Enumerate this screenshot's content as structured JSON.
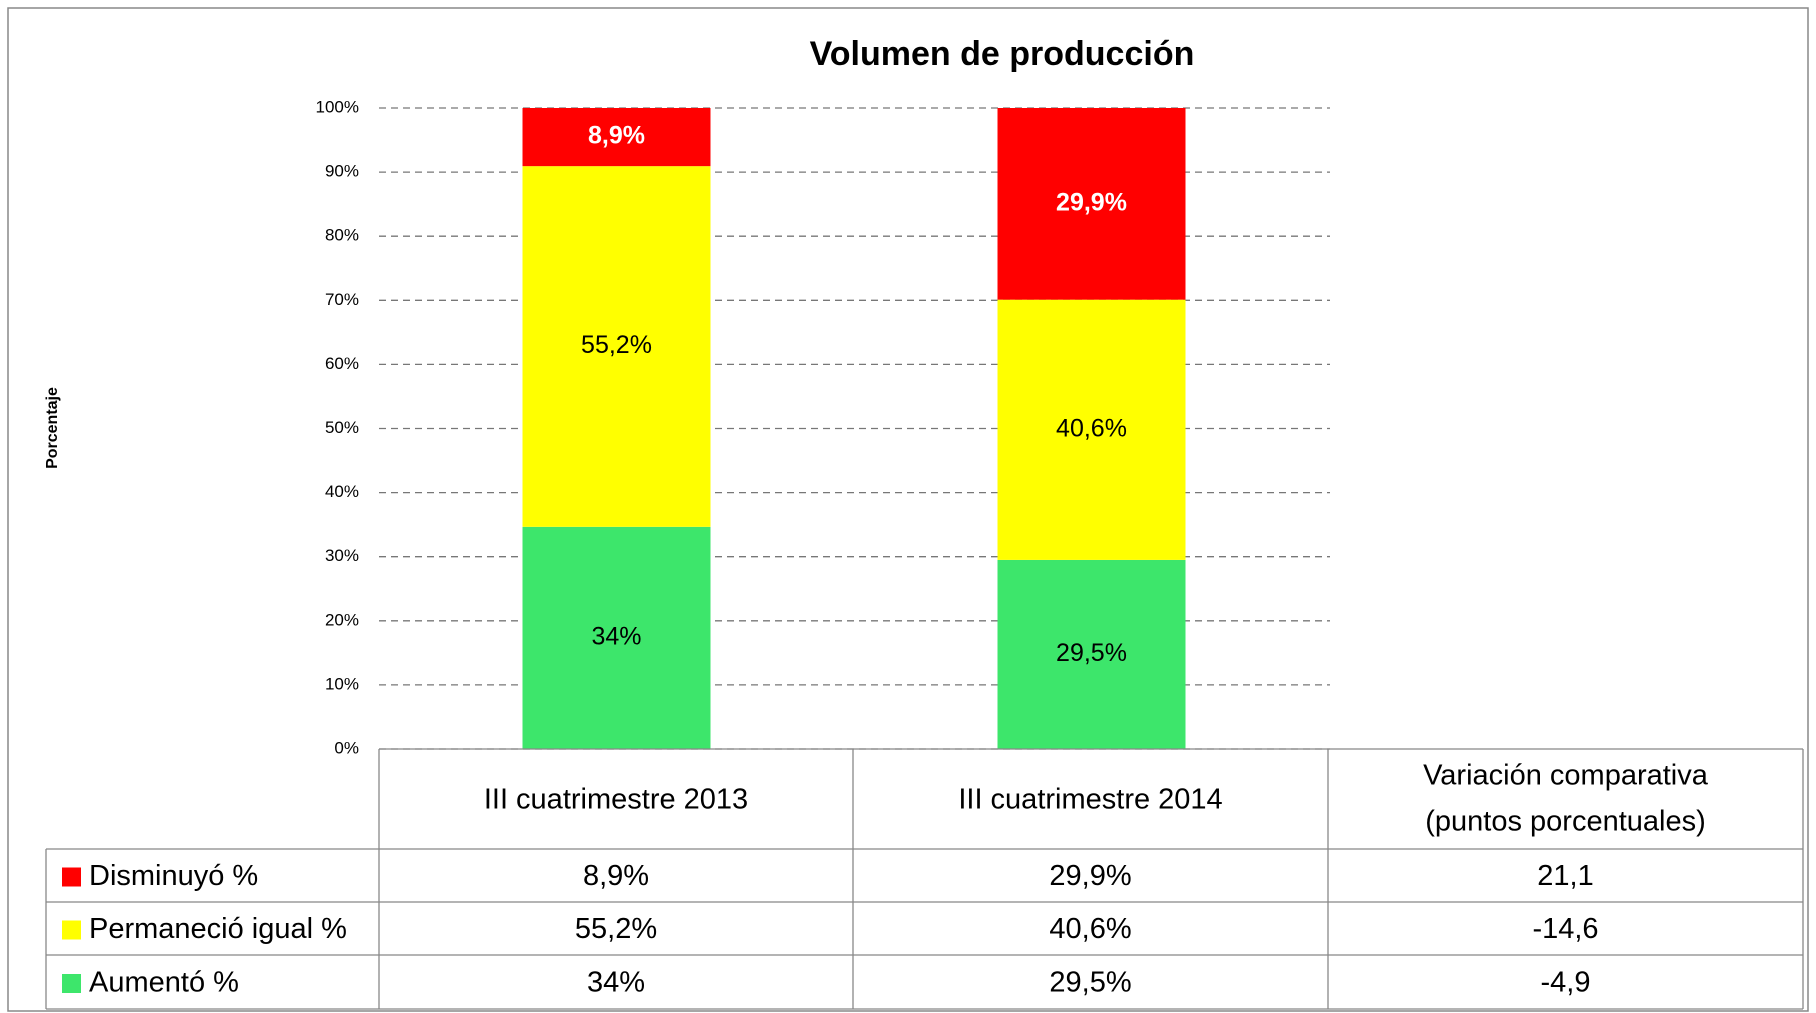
{
  "chart_data": {
    "type": "bar",
    "stacking": "percent",
    "title": "Volumen de producción",
    "y_label": "Porcentaje",
    "categories": [
      "III cuatrimestre 2013",
      "III cuatrimestre 2014"
    ],
    "series": [
      {
        "name": "Disminuyó %",
        "color": "#ff0000",
        "label_color": "#ffffff",
        "label_bold": true,
        "values": [
          8.9,
          29.9
        ],
        "value_labels": [
          "8,9%",
          "29,9%"
        ]
      },
      {
        "name": "Permaneció igual %",
        "color": "#ffff00",
        "label_color": "#000000",
        "label_bold": false,
        "values": [
          55.2,
          40.6
        ],
        "value_labels": [
          "55,2%",
          "40,6%"
        ]
      },
      {
        "name": "Aumentó %",
        "color": "#3de66b",
        "label_color": "#000000",
        "label_bold": false,
        "values": [
          34,
          29.5
        ],
        "value_labels": [
          "34%",
          "29,5%"
        ]
      }
    ],
    "variation": {
      "header": [
        "Variación comparativa",
        "(puntos porcentuales)"
      ],
      "values": [
        21.1,
        -14.6,
        -4.9
      ],
      "value_labels": [
        "21,1",
        "-14,6",
        "-4,9"
      ]
    },
    "ylim": [
      0,
      100
    ],
    "yticks": [
      {
        "value": 0,
        "label": "0%"
      },
      {
        "value": 10,
        "label": "10%"
      },
      {
        "value": 20,
        "label": "20%"
      },
      {
        "value": 30,
        "label": "30%"
      },
      {
        "value": 40,
        "label": "40%"
      },
      {
        "value": 50,
        "label": "50%"
      },
      {
        "value": 60,
        "label": "60%"
      },
      {
        "value": 70,
        "label": "70%"
      },
      {
        "value": 80,
        "label": "80%"
      },
      {
        "value": 90,
        "label": "90%"
      },
      {
        "value": 100,
        "label": "100%"
      }
    ],
    "grid": true
  }
}
